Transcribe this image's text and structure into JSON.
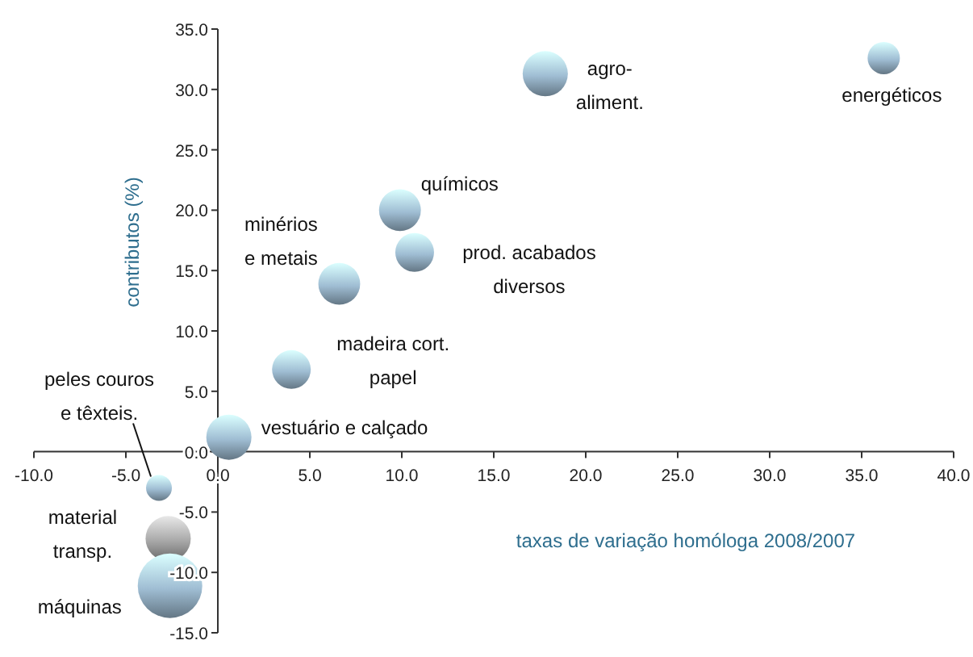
{
  "chart_data": {
    "type": "bubble",
    "xlabel": "taxas de variação homóloga 2008/2007",
    "ylabel": "contributos (%)",
    "x": [
      36.2,
      17.8,
      9.9,
      10.7,
      6.6,
      4.0,
      0.6,
      -3.2,
      -2.7,
      -2.6
    ],
    "values": [
      32.6,
      31.3,
      20.0,
      16.5,
      13.9,
      6.8,
      1.2,
      -3.0,
      -7.2,
      -11.1
    ],
    "sizes": [
      0.25,
      0.49,
      0.42,
      0.36,
      0.42,
      0.36,
      0.49,
      0.16,
      0.49,
      1
    ],
    "colors": [
      "#9fbdd3",
      "#9fbdd3",
      "#9fbdd3",
      "#9fbdd3",
      "#9fbdd3",
      "#9fbdd3",
      "#9fbdd3",
      "#9fbdd3",
      "#a8a8a8",
      "#9fbdd3"
    ],
    "annotations": [
      {
        "text": "energéticos",
        "x": 36.2,
        "y": 32.6
      },
      {
        "text": "agro-\naliment.",
        "x": 17.8,
        "y": 31.3
      },
      {
        "text": "químicos",
        "x": 9.9,
        "y": 20.0
      },
      {
        "text": "prod. acabados\ndiversos",
        "x": 10.7,
        "y": 16.5
      },
      {
        "text": "minérios\ne metais",
        "x": 6.6,
        "y": 13.9
      },
      {
        "text": "madeira cort.\npapel",
        "x": 4.0,
        "y": 6.8
      },
      {
        "text": "vestuário e calçado",
        "x": 0.6,
        "y": 1.2
      },
      {
        "text": "peles couros\ne têxteis.",
        "x": -3.2,
        "y": -3.0
      },
      {
        "text": "material\ntransp.",
        "x": -2.7,
        "y": -7.2
      },
      {
        "text": "máquinas",
        "x": -2.6,
        "y": -11.1
      }
    ],
    "xlim": [
      -10,
      40
    ],
    "xticks": [
      {
        "value": -10,
        "label": "-10.0"
      },
      {
        "value": -5,
        "label": "-5.0"
      },
      {
        "value": 0,
        "label": "0.0"
      },
      {
        "value": 5,
        "label": "5.0"
      },
      {
        "value": 10,
        "label": "10.0"
      },
      {
        "value": 15,
        "label": "15.0"
      },
      {
        "value": 20,
        "label": "20.0"
      },
      {
        "value": 25,
        "label": "25.0"
      },
      {
        "value": 30,
        "label": "30.0"
      },
      {
        "value": 35,
        "label": "35.0"
      },
      {
        "value": 40,
        "label": "40.0"
      }
    ],
    "ylim": [
      -15,
      35
    ],
    "yticks": [
      {
        "value": -15,
        "label": "-15.0"
      },
      {
        "value": -10,
        "label": "-10.0"
      },
      {
        "value": -5,
        "label": "-5.0"
      },
      {
        "value": 0,
        "label": "0.0"
      },
      {
        "value": 5,
        "label": "5.0"
      },
      {
        "value": 10,
        "label": "10.0"
      },
      {
        "value": 15,
        "label": "15.0"
      },
      {
        "value": 20,
        "label": "20.0"
      },
      {
        "value": 25,
        "label": "25.0"
      },
      {
        "value": 30,
        "label": "30.0"
      },
      {
        "value": 35,
        "label": "35.0"
      }
    ],
    "grid": false
  }
}
